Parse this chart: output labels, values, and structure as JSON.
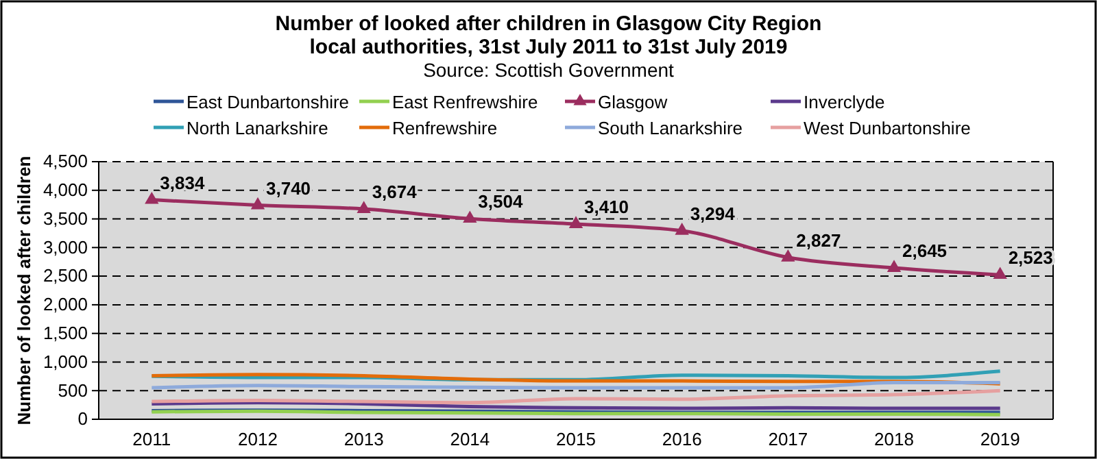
{
  "chart_data": {
    "type": "line",
    "title": "Number of looked after children in Glasgow City Region\nlocal authorities, 31st July 2011 to 31st July 2019",
    "subtitle": "Source: Scottish Government",
    "ylabel": "Number of looked after children",
    "categories": [
      "2011",
      "2012",
      "2013",
      "2014",
      "2015",
      "2016",
      "2017",
      "2018",
      "2019"
    ],
    "series": [
      {
        "name": "East Dunbartonshire",
        "color": "#2e5597",
        "values": [
          150,
          160,
          150,
          140,
          130,
          120,
          120,
          120,
          120
        ]
      },
      {
        "name": "East Renfrewshire",
        "color": "#92d050",
        "values": [
          130,
          140,
          120,
          110,
          100,
          100,
          90,
          90,
          80
        ]
      },
      {
        "name": "Glasgow",
        "color": "#9b2d5f",
        "marker": "triangle",
        "values": [
          3834,
          3740,
          3674,
          3504,
          3410,
          3294,
          2827,
          2645,
          2523
        ],
        "value_labels": [
          "3,834",
          "3,740",
          "3,674",
          "3,504",
          "3,410",
          "3,294",
          "2,827",
          "2,645",
          "2,523"
        ]
      },
      {
        "name": "Inverclyde",
        "color": "#5b3a8c",
        "values": [
          270,
          290,
          270,
          220,
          200,
          190,
          200,
          190,
          190
        ]
      },
      {
        "name": "North Lanarkshire",
        "color": "#31a0b5",
        "values": [
          750,
          730,
          730,
          690,
          690,
          770,
          760,
          730,
          840
        ]
      },
      {
        "name": "Renfrewshire",
        "color": "#e36c0a",
        "values": [
          760,
          780,
          760,
          700,
          670,
          670,
          660,
          660,
          620
        ]
      },
      {
        "name": "South Lanarkshire",
        "color": "#8eaadb",
        "values": [
          550,
          590,
          570,
          560,
          550,
          550,
          550,
          640,
          640
        ]
      },
      {
        "name": "West Dunbartonshire",
        "color": "#e6a0a0",
        "values": [
          310,
          330,
          310,
          290,
          360,
          350,
          410,
          430,
          500
        ]
      }
    ],
    "ylim": [
      0,
      4500
    ],
    "yticks": [
      0,
      500,
      {
        "value": 1000,
        "label": "1,000"
      },
      {
        "value": 1500,
        "label": "1,500"
      },
      {
        "value": 2000,
        "label": "2,000"
      },
      {
        "value": 2500,
        "label": "2,500"
      },
      {
        "value": 3000,
        "label": "3,000"
      },
      {
        "value": 3500,
        "label": "3,500"
      },
      {
        "value": 4000,
        "label": "4,000"
      },
      {
        "value": 4500,
        "label": "4,500"
      }
    ],
    "grid": "y",
    "legend": "top",
    "line_style": "solid"
  }
}
